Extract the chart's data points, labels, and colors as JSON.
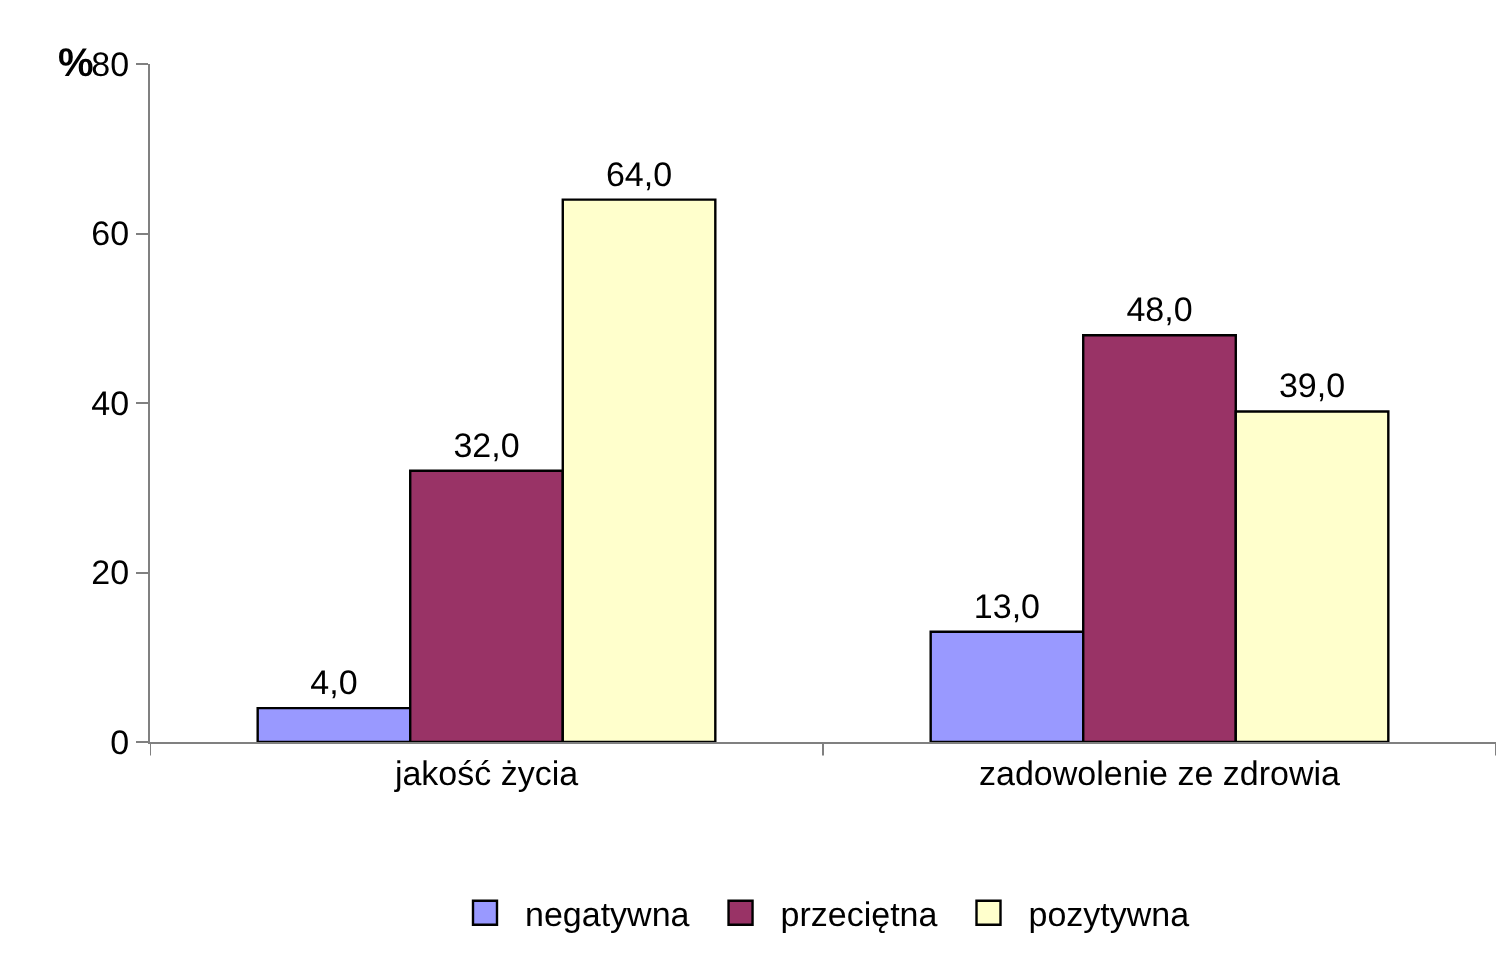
{
  "chart_data": {
    "type": "bar",
    "ylabel": "%",
    "categories": [
      "jakość życia",
      "zadowolenie ze zdrowia"
    ],
    "series": [
      {
        "name": "negatywna",
        "color": "#9999ff",
        "values": [
          4.0,
          13.0
        ],
        "value_labels": [
          "4,0",
          "13,0"
        ]
      },
      {
        "name": "przeciętna",
        "color": "#993366",
        "values": [
          32.0,
          48.0
        ],
        "value_labels": [
          "32,0",
          "48,0"
        ]
      },
      {
        "name": "pozytywna",
        "color": "#ffffcc",
        "values": [
          64.0,
          39.0
        ],
        "value_labels": [
          "64,0",
          "39,0"
        ]
      }
    ],
    "ylim": [
      0,
      80
    ],
    "yticks": [
      0,
      20,
      40,
      60,
      80
    ],
    "grid": false,
    "legend": "bottom"
  }
}
